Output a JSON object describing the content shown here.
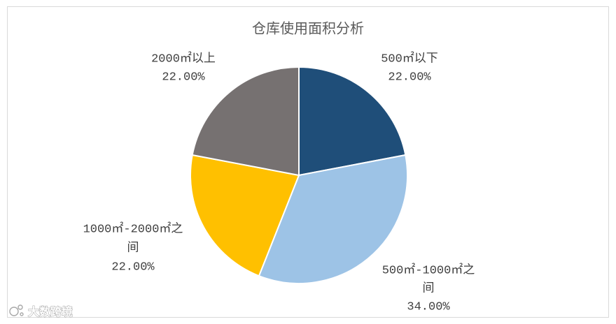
{
  "chart_data": {
    "type": "pie",
    "title": "仓库使用面积分析",
    "categories": [
      "500㎡以下",
      "500㎡-1000㎡之间",
      "1000㎡-2000㎡之间",
      "2000㎡以上"
    ],
    "values": [
      22,
      34,
      22,
      22
    ],
    "colors": [
      "#1F4E79",
      "#9DC3E6",
      "#FFC000",
      "#767171"
    ],
    "legend": "none"
  },
  "watermark": {
    "text": "大数跨境"
  }
}
